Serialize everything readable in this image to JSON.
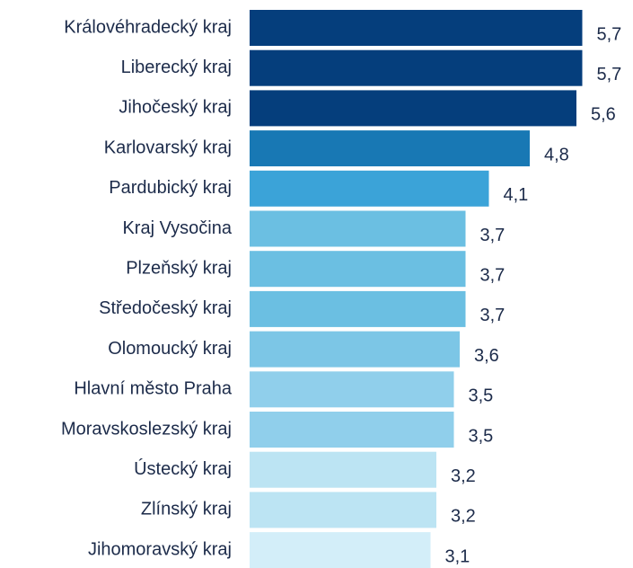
{
  "chart_data": {
    "type": "barh",
    "categories": [
      "Královéhradecký kraj",
      "Liberecký kraj",
      "Jihočeský kraj",
      "Karlovarský kraj",
      "Pardubický kraj",
      "Kraj Vysočina",
      "Plzeňský kraj",
      "Středočeský kraj",
      "Olomoucký kraj",
      "Hlavní město Praha",
      "Moravskoslezský kraj",
      "Ústecký kraj",
      "Zlínský kraj",
      "Jihomoravský kraj"
    ],
    "values": [
      5.7,
      5.7,
      5.6,
      4.8,
      4.1,
      3.7,
      3.7,
      3.7,
      3.6,
      3.5,
      3.5,
      3.2,
      3.2,
      3.1
    ],
    "value_labels": [
      "5,7",
      "5,7",
      "5,6",
      "4,8",
      "4,1",
      "3,7",
      "3,7",
      "3,7",
      "3,6",
      "3,5",
      "3,5",
      "3,2",
      "3,2",
      "3,1"
    ],
    "colors": [
      "#053e7c",
      "#053e7c",
      "#053e7c",
      "#1878b4",
      "#3ba3d8",
      "#6bbfe2",
      "#6bbfe2",
      "#6bbfe2",
      "#7cc6e6",
      "#90cfeb",
      "#90cfeb",
      "#bce4f3",
      "#bce4f3",
      "#d3eef9"
    ],
    "xlim": [
      0,
      6
    ]
  }
}
